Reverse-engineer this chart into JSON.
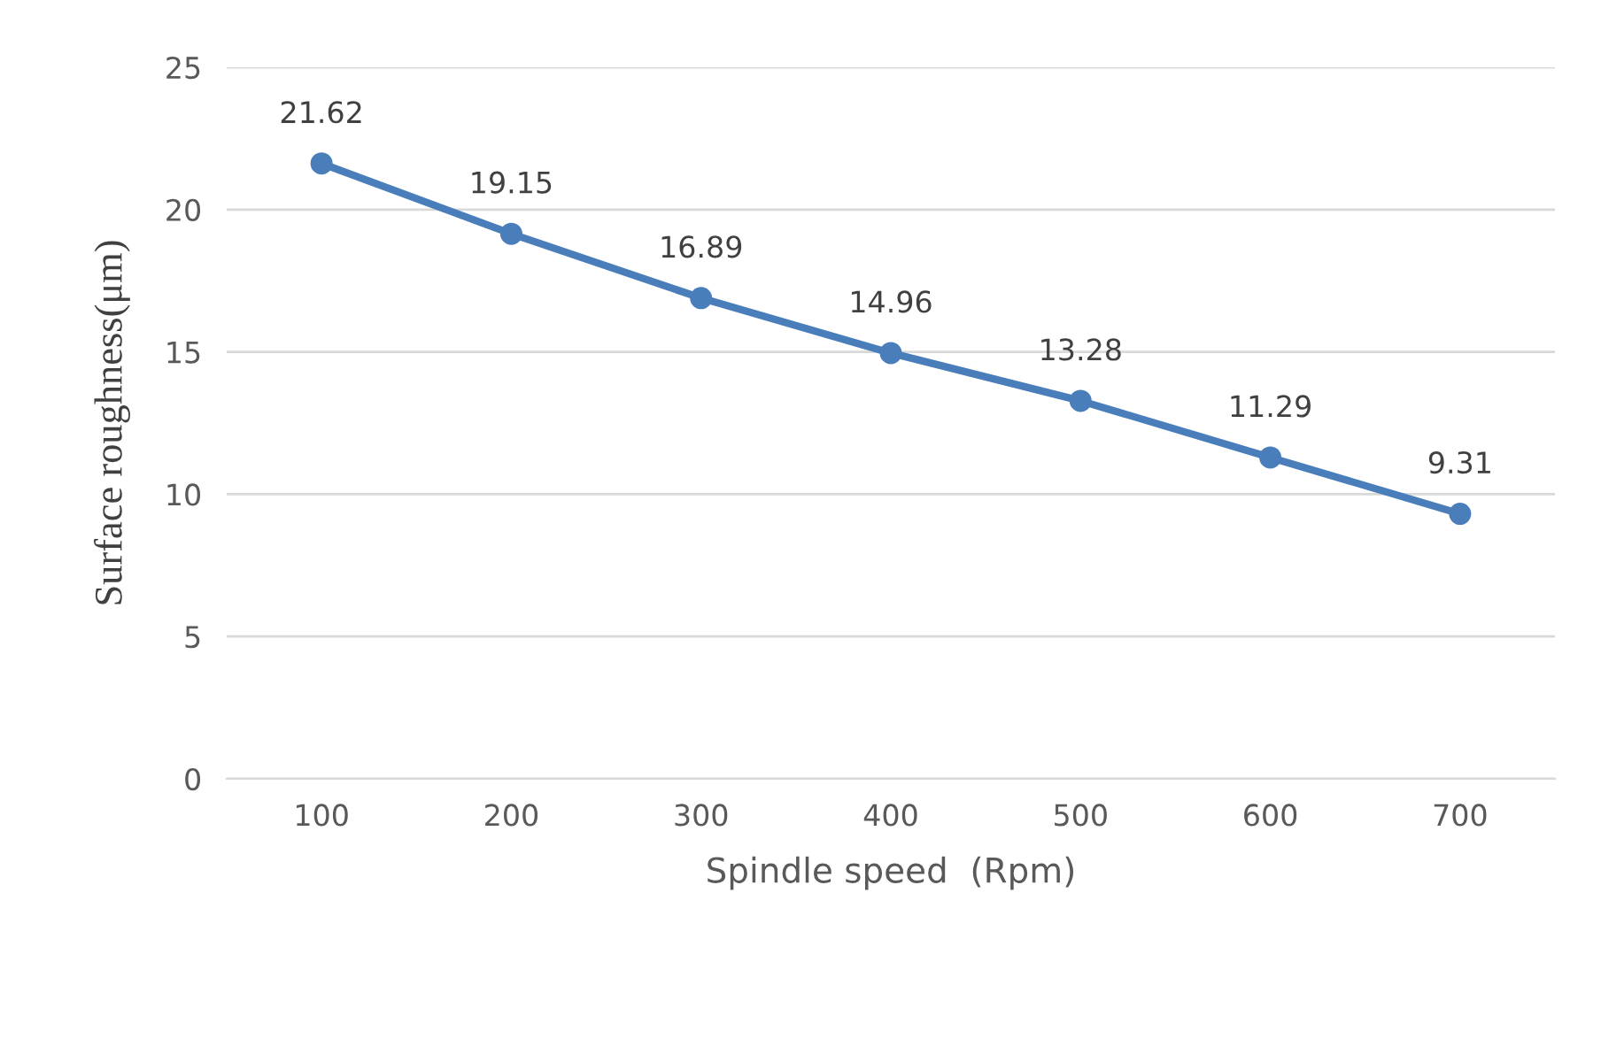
{
  "chart_data": {
    "type": "line",
    "xlabel": "Spindle speed  (Rpm)",
    "ylabel": "Surface roughness(μm)",
    "categories": [
      "100",
      "200",
      "300",
      "400",
      "500",
      "600",
      "700"
    ],
    "values": [
      21.62,
      19.15,
      16.89,
      14.96,
      13.28,
      11.29,
      9.31
    ],
    "color": "#4a7ebb",
    "marker": "circle",
    "line_style": "solid",
    "ylim": [
      0,
      25
    ],
    "yticks": [
      0,
      5,
      10,
      15,
      20,
      25
    ],
    "grid": "y",
    "data_labels": true,
    "legend": false
  }
}
